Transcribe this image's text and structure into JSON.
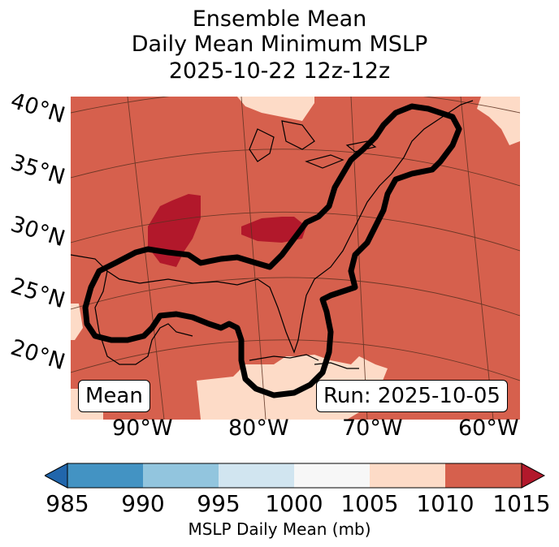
{
  "title": {
    "line1": "Ensemble Mean",
    "line2": "Daily Mean Minimum MSLP",
    "line3": "2025-10-22 12z-12z"
  },
  "map": {
    "lat_labels": [
      "40°N",
      "35°N",
      "30°N",
      "25°N",
      "20°N"
    ],
    "lon_labels": [
      "90°W",
      "80°W",
      "70°W",
      "60°W"
    ],
    "mean_box": "Mean",
    "run_box": "Run: 2025-10-05",
    "colors": {
      "ocean_land_main": "#d6604d",
      "low_fill": "#b2182b",
      "high_fill": "#fddbc7",
      "contour": "#000000"
    }
  },
  "colorbar": {
    "label": "MSLP Daily Mean (mb)",
    "ticks": [
      "985",
      "990",
      "995",
      "1000",
      "1005",
      "1010",
      "1015"
    ],
    "colors": [
      "#2166ac",
      "#4393c3",
      "#92c5de",
      "#d1e5f0",
      "#f7f7f7",
      "#fddbc7",
      "#d6604d",
      "#b2182b"
    ]
  }
}
